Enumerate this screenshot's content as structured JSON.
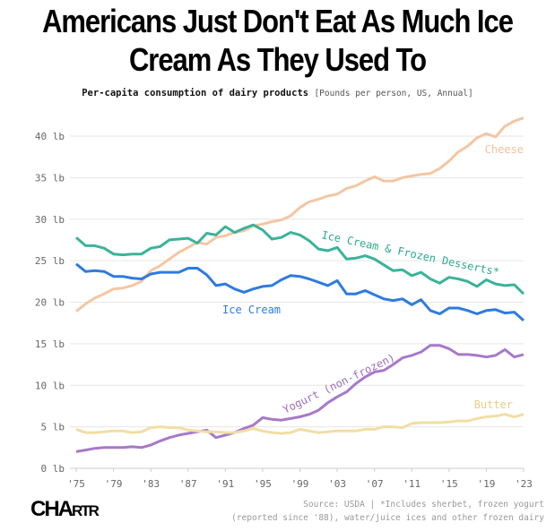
{
  "chart_data": {
    "type": "line",
    "title": "Americans Just Don't Eat As Much Ice Cream As They Used To",
    "subtitle": "Per-capita consumption of dairy products",
    "units": "[Pounds per person, US, Annual]",
    "xlim": [
      1975,
      2023
    ],
    "ylim": [
      0,
      42
    ],
    "grid": true,
    "y_ticks": [
      0,
      5,
      10,
      15,
      20,
      25,
      30,
      35,
      40
    ],
    "y_tick_labels": [
      "0 lb",
      "5 lb",
      "10 lb",
      "15 lb",
      "20 lb",
      "25 lb",
      "30 lb",
      "35 lb",
      "40 lb"
    ],
    "x_ticks": [
      1975,
      1979,
      1983,
      1987,
      1991,
      1995,
      1999,
      2003,
      2007,
      2011,
      2015,
      2019,
      2023
    ],
    "x_tick_labels": [
      "'75",
      "'79",
      "'83",
      "'87",
      "'91",
      "'95",
      "'99",
      "'03",
      "'07",
      "'11",
      "'15",
      "'19",
      "'23"
    ],
    "x_start": 1975,
    "series": [
      {
        "name": "Cheese",
        "color": "#f4c6a2",
        "values": [
          18.9,
          19.8,
          20.5,
          21.0,
          21.6,
          21.7,
          22.0,
          22.5,
          23.8,
          24.4,
          25.2,
          26.0,
          26.6,
          27.2,
          27.0,
          27.8,
          28.0,
          28.4,
          28.6,
          29.2,
          29.4,
          29.7,
          29.9,
          30.4,
          31.4,
          32.1,
          32.4,
          32.8,
          33.0,
          33.7,
          34.0,
          34.6,
          35.1,
          34.6,
          34.6,
          35.0,
          35.2,
          35.4,
          35.5,
          36.1,
          37.0,
          38.1,
          38.8,
          39.8,
          40.3,
          39.9,
          41.2,
          41.8,
          42.2
        ]
      },
      {
        "name": "Ice Cream & Frozen Desserts*",
        "color": "#3bb39a",
        "values": [
          27.8,
          26.8,
          26.8,
          26.5,
          25.8,
          25.7,
          25.8,
          25.8,
          26.5,
          26.7,
          27.5,
          27.6,
          27.7,
          27.1,
          28.3,
          28.1,
          29.1,
          28.4,
          28.9,
          29.3,
          28.7,
          27.6,
          27.8,
          28.4,
          28.1,
          27.4,
          26.4,
          26.2,
          26.6,
          25.2,
          25.3,
          25.6,
          25.2,
          24.5,
          23.8,
          23.9,
          23.2,
          23.6,
          22.8,
          22.3,
          23.0,
          22.8,
          22.5,
          21.9,
          22.7,
          22.2,
          22.0,
          22.1,
          21.0
        ]
      },
      {
        "name": "Ice Cream",
        "color": "#2e7be0",
        "values": [
          24.6,
          23.7,
          23.8,
          23.7,
          23.1,
          23.1,
          22.9,
          22.8,
          23.4,
          23.6,
          23.6,
          23.6,
          24.1,
          24.1,
          23.3,
          22.0,
          22.2,
          21.6,
          21.2,
          21.6,
          21.9,
          22.0,
          22.7,
          23.2,
          23.1,
          22.8,
          22.4,
          22.0,
          22.6,
          21.0,
          21.0,
          21.4,
          20.9,
          20.4,
          20.2,
          20.4,
          19.7,
          20.3,
          19.0,
          18.6,
          19.3,
          19.3,
          19.0,
          18.6,
          19.0,
          19.1,
          18.7,
          18.8,
          17.8
        ]
      },
      {
        "name": "Yogurt (non-frozen)",
        "color": "#a779c9",
        "values": [
          2.0,
          2.2,
          2.4,
          2.5,
          2.5,
          2.5,
          2.6,
          2.5,
          2.8,
          3.3,
          3.7,
          4.0,
          4.2,
          4.4,
          4.6,
          3.7,
          4.0,
          4.3,
          4.8,
          5.2,
          6.1,
          5.9,
          5.8,
          6.0,
          6.2,
          6.5,
          7.0,
          7.9,
          8.6,
          9.2,
          10.2,
          11.0,
          11.6,
          11.8,
          12.5,
          13.3,
          13.6,
          14.0,
          14.8,
          14.8,
          14.4,
          13.7,
          13.7,
          13.6,
          13.4,
          13.6,
          14.3,
          13.4,
          13.7
        ]
      },
      {
        "name": "Butter",
        "color": "#f2dea4",
        "values": [
          4.7,
          4.3,
          4.3,
          4.4,
          4.5,
          4.5,
          4.3,
          4.4,
          4.9,
          5.0,
          4.9,
          4.9,
          4.6,
          4.5,
          4.4,
          4.4,
          4.3,
          4.3,
          4.5,
          4.8,
          4.5,
          4.3,
          4.2,
          4.3,
          4.7,
          4.5,
          4.3,
          4.4,
          4.5,
          4.5,
          4.5,
          4.7,
          4.7,
          5.0,
          5.0,
          4.9,
          5.4,
          5.5,
          5.5,
          5.5,
          5.6,
          5.7,
          5.7,
          6.0,
          6.2,
          6.3,
          6.5,
          6.2,
          6.5
        ]
      }
    ],
    "source": "Source: USDA | *Includes sherbet, frozen yogurt",
    "source2": "(reported since '88), water/juice ices and other frozen dairy"
  },
  "brand": {
    "logo": "CHARTR"
  }
}
